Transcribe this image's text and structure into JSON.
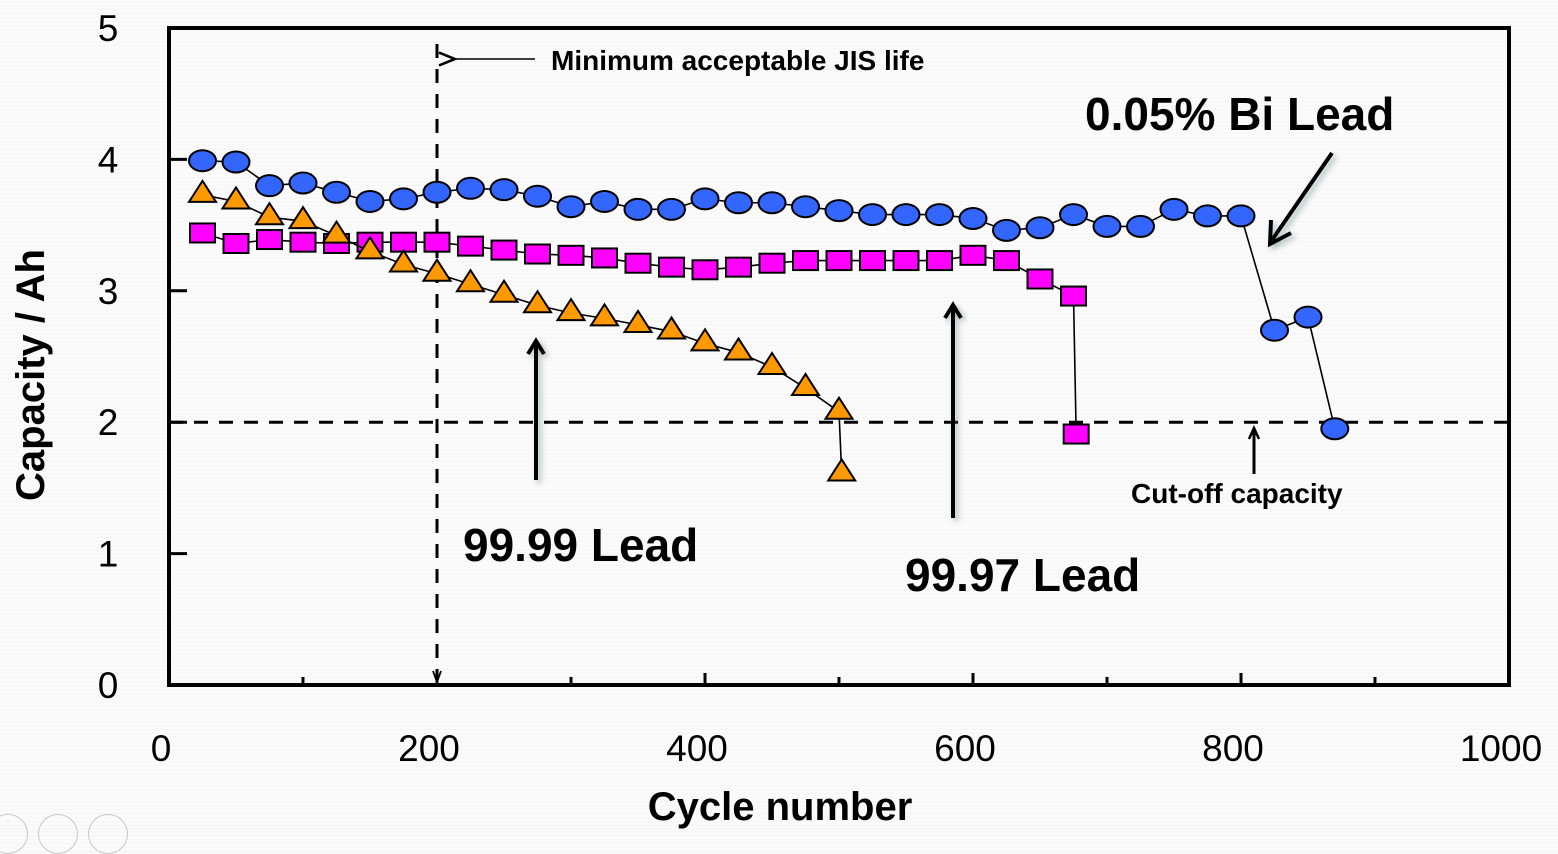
{
  "chart_data": {
    "type": "scatter",
    "title": "",
    "xlabel": "Cycle number",
    "ylabel": "Capacity / Ah",
    "xlim": [
      0,
      1000
    ],
    "ylim": [
      0,
      5
    ],
    "x_ticks": [
      0,
      200,
      400,
      600,
      800,
      1000
    ],
    "x_minor_ticks": [
      100,
      300,
      500,
      700,
      900
    ],
    "y_ticks": [
      0,
      1,
      2,
      3,
      4,
      5
    ],
    "grid": false,
    "legend": "none (series labeled by annotations)",
    "series": [
      {
        "name": "0.05% Bi Lead",
        "marker": "circle",
        "color": "#3366ff",
        "x": [
          25,
          50,
          75,
          100,
          125,
          150,
          175,
          200,
          225,
          250,
          275,
          300,
          325,
          350,
          375,
          400,
          425,
          450,
          475,
          500,
          525,
          550,
          575,
          600,
          625,
          650,
          675,
          700,
          725,
          750,
          775,
          800,
          825,
          850,
          870
        ],
        "y": [
          3.99,
          3.98,
          3.8,
          3.82,
          3.75,
          3.68,
          3.7,
          3.75,
          3.78,
          3.77,
          3.72,
          3.64,
          3.68,
          3.62,
          3.62,
          3.7,
          3.67,
          3.67,
          3.64,
          3.61,
          3.58,
          3.58,
          3.58,
          3.55,
          3.46,
          3.48,
          3.58,
          3.49,
          3.49,
          3.62,
          3.57,
          3.57,
          2.7,
          2.8,
          1.95
        ]
      },
      {
        "name": "99.97 Lead",
        "marker": "square",
        "color": "#ff00ff",
        "x": [
          25,
          50,
          75,
          100,
          125,
          150,
          175,
          200,
          225,
          250,
          275,
          300,
          325,
          350,
          375,
          400,
          425,
          450,
          475,
          500,
          525,
          550,
          575,
          600,
          625,
          650,
          675,
          677
        ],
        "y": [
          3.44,
          3.36,
          3.39,
          3.37,
          3.36,
          3.37,
          3.37,
          3.37,
          3.34,
          3.31,
          3.28,
          3.27,
          3.25,
          3.21,
          3.18,
          3.16,
          3.18,
          3.21,
          3.23,
          3.23,
          3.23,
          3.23,
          3.23,
          3.27,
          3.23,
          3.09,
          2.96,
          1.91
        ]
      },
      {
        "name": "99.99 Lead",
        "marker": "triangle",
        "color": "#ff9900",
        "x": [
          25,
          50,
          75,
          100,
          125,
          150,
          175,
          200,
          225,
          250,
          275,
          300,
          325,
          350,
          375,
          400,
          425,
          450,
          475,
          500,
          502
        ],
        "y": [
          3.73,
          3.68,
          3.56,
          3.53,
          3.42,
          3.3,
          3.2,
          3.13,
          3.05,
          2.97,
          2.89,
          2.83,
          2.79,
          2.74,
          2.69,
          2.6,
          2.53,
          2.42,
          2.26,
          2.08,
          1.61
        ]
      }
    ],
    "reference_lines": [
      {
        "name": "Cut-off capacity",
        "orientation": "horizontal",
        "value": 2,
        "style": "dashed"
      },
      {
        "name": "Minimum acceptable JIS life",
        "orientation": "vertical",
        "value": 200,
        "style": "dashed"
      }
    ],
    "annotations": [
      {
        "text": "Minimum acceptable JIS life",
        "points_to": "vertical line at 200 cycles"
      },
      {
        "text": "0.05% Bi Lead",
        "points_to": "circle series"
      },
      {
        "text": "99.99 Lead",
        "points_to": "triangle series"
      },
      {
        "text": "99.97 Lead",
        "points_to": "square series"
      },
      {
        "text": "Cut-off capacity",
        "points_to": "horizontal line at 2 Ah"
      }
    ]
  },
  "labels": {
    "jis": "Minimum acceptable JIS life",
    "bi": "0.05% Bi Lead",
    "l9999": "99.99 Lead",
    "l9997": "99.97 Lead",
    "cutoff": "Cut-off capacity"
  }
}
